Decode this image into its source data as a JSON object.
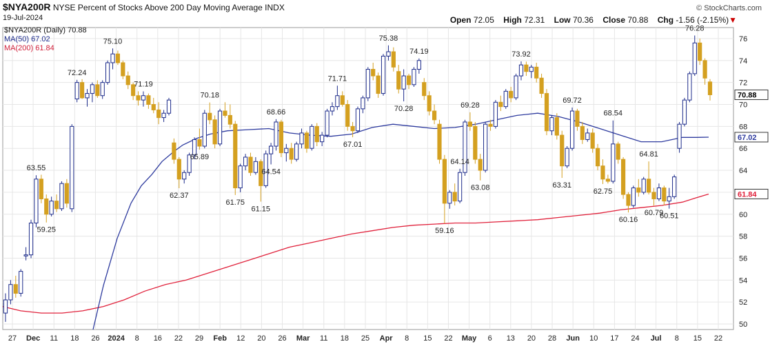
{
  "header": {
    "symbol": "$NYA200R",
    "description": "NYSE Percent of Stocks Above 200 Day Moving Average",
    "exchange": "INDX",
    "date": "19-Jul-2024",
    "brand": "© StockCharts.com",
    "open_label": "Open",
    "open": "72.05",
    "high_label": "High",
    "high": "72.31",
    "low_label": "Low",
    "low": "70.36",
    "close_label": "Close",
    "close": "70.88",
    "chg_label": "Chg",
    "chg": "-1.56 (-2.15%)"
  },
  "legend": {
    "main": "$NYA200R (Daily) 70.88",
    "ma50": "MA(50) 67.02",
    "ma200": "MA(200) 61.84"
  },
  "colors": {
    "up": "#1b2a8a",
    "down": "#d4a020",
    "ma50": "#2d3a9e",
    "ma200": "#e0203a",
    "grid": "#e6e6e6"
  },
  "chart_data": {
    "type": "candlestick",
    "ylim": [
      49.5,
      77
    ],
    "y_ticks": [
      50,
      52,
      54,
      56,
      58,
      60,
      62,
      64,
      66,
      68,
      70,
      72,
      74,
      76
    ],
    "x_ticks": [
      "27",
      "Dec",
      "11",
      "18",
      "26",
      "2024",
      "8",
      "16",
      "22",
      "29",
      "Feb",
      "12",
      "20",
      "26",
      "Mar",
      "11",
      "18",
      "25",
      "Apr",
      "8",
      "15",
      "22",
      "May",
      "6",
      "13",
      "20",
      "28",
      "Jun",
      "10",
      "17",
      "24",
      "Jul",
      "8",
      "15",
      "22"
    ],
    "value_tags": {
      "close": "70.88",
      "ma50": "67.02",
      "ma200": "61.84"
    },
    "annotations": [
      {
        "label": "63.55",
        "value": 63.55
      },
      {
        "label": "59.25",
        "value": 59.25
      },
      {
        "label": "72.24",
        "value": 72.24
      },
      {
        "label": "75.10",
        "value": 75.1
      },
      {
        "label": "71.19",
        "value": 71.19
      },
      {
        "label": "62.37",
        "value": 62.37
      },
      {
        "label": "65.89",
        "value": 65.89
      },
      {
        "label": "70.18",
        "value": 70.18
      },
      {
        "label": "61.75",
        "value": 61.75
      },
      {
        "label": "68.66",
        "value": 68.66
      },
      {
        "label": "61.15",
        "value": 61.15
      },
      {
        "label": "64.54",
        "value": 64.54
      },
      {
        "label": "71.71",
        "value": 71.71
      },
      {
        "label": "67.01",
        "value": 67.01
      },
      {
        "label": "75.38",
        "value": 75.38
      },
      {
        "label": "70.28",
        "value": 70.28
      },
      {
        "label": "74.19",
        "value": 74.19
      },
      {
        "label": "59.16",
        "value": 59.16
      },
      {
        "label": "69.28",
        "value": 69.28
      },
      {
        "label": "64.14",
        "value": 64.14
      },
      {
        "label": "63.08",
        "value": 63.08
      },
      {
        "label": "73.92",
        "value": 73.92
      },
      {
        "label": "63.31",
        "value": 63.31
      },
      {
        "label": "69.72",
        "value": 69.72
      },
      {
        "label": "68.54",
        "value": 68.54
      },
      {
        "label": "62.75",
        "value": 62.75
      },
      {
        "label": "60.16",
        "value": 60.16
      },
      {
        "label": "64.81",
        "value": 64.81
      },
      {
        "label": "60.79",
        "value": 60.79
      },
      {
        "label": "60.51",
        "value": 60.51
      },
      {
        "label": "76.28",
        "value": 76.28
      }
    ],
    "candles": [
      [
        51.0,
        52.8,
        50.2,
        52.2
      ],
      [
        52.2,
        54.0,
        51.8,
        53.6
      ],
      [
        53.6,
        54.4,
        52.4,
        52.8
      ],
      [
        52.8,
        55.0,
        52.5,
        54.8
      ],
      [
        56.2,
        57.0,
        55.8,
        56.3
      ],
      [
        56.3,
        59.5,
        56.0,
        59.2
      ],
      [
        59.2,
        63.55,
        58.8,
        63.2
      ],
      [
        63.2,
        63.6,
        61.0,
        61.4
      ],
      [
        61.4,
        61.8,
        59.25,
        60.0
      ],
      [
        60.0,
        61.6,
        59.8,
        61.2
      ],
      [
        61.2,
        61.8,
        60.2,
        60.5
      ],
      [
        60.5,
        63.0,
        60.3,
        62.8
      ],
      [
        62.8,
        63.2,
        60.6,
        61.0
      ],
      [
        60.5,
        68.2,
        60.2,
        68.0
      ],
      [
        70.5,
        72.24,
        70.2,
        72.0
      ],
      [
        72.0,
        72.3,
        70.5,
        70.6
      ],
      [
        70.6,
        71.4,
        69.8,
        71.0
      ],
      [
        71.0,
        72.0,
        70.2,
        71.8
      ],
      [
        71.8,
        72.2,
        70.6,
        70.8
      ],
      [
        70.8,
        72.2,
        70.5,
        72.0
      ],
      [
        72.0,
        74.0,
        71.8,
        73.8
      ],
      [
        73.8,
        75.1,
        73.2,
        74.6
      ],
      [
        74.6,
        74.9,
        73.6,
        73.8
      ],
      [
        73.8,
        74.0,
        72.3,
        72.6
      ],
      [
        72.6,
        73.0,
        71.4,
        71.8
      ],
      [
        71.8,
        72.0,
        70.4,
        70.8
      ],
      [
        70.8,
        71.2,
        69.9,
        70.4
      ],
      [
        70.4,
        71.19,
        69.8,
        70.8
      ],
      [
        70.8,
        71.0,
        69.6,
        70.0
      ],
      [
        70.0,
        70.6,
        69.2,
        69.5
      ],
      [
        69.5,
        70.2,
        68.2,
        68.8
      ],
      [
        68.8,
        69.5,
        68.4,
        69.2
      ],
      [
        69.2,
        70.6,
        69.0,
        70.4
      ],
      [
        66.5,
        66.9,
        64.6,
        65.0
      ],
      [
        65.0,
        65.2,
        62.37,
        63.2
      ],
      [
        63.2,
        64.0,
        62.8,
        63.8
      ],
      [
        63.8,
        65.6,
        63.5,
        65.4
      ],
      [
        65.4,
        67.0,
        65.0,
        66.8
      ],
      [
        66.8,
        67.8,
        65.89,
        66.2
      ],
      [
        66.2,
        69.5,
        66.0,
        69.2
      ],
      [
        69.2,
        70.18,
        68.2,
        68.6
      ],
      [
        68.6,
        69.0,
        66.0,
        66.4
      ],
      [
        66.4,
        69.6,
        66.2,
        69.4
      ],
      [
        69.4,
        70.2,
        68.8,
        69.0
      ],
      [
        69.0,
        70.0,
        67.8,
        68.2
      ],
      [
        68.2,
        68.5,
        61.75,
        62.4
      ],
      [
        62.4,
        64.6,
        62.0,
        64.4
      ],
      [
        64.4,
        65.5,
        64.0,
        65.2
      ],
      [
        65.2,
        65.6,
        63.5,
        63.8
      ],
      [
        63.8,
        65.2,
        63.6,
        64.8
      ],
      [
        64.8,
        65.0,
        61.15,
        62.6
      ],
      [
        62.6,
        65.8,
        62.4,
        65.5
      ],
      [
        65.5,
        66.5,
        64.54,
        66.2
      ],
      [
        66.2,
        68.66,
        65.8,
        68.4
      ],
      [
        68.4,
        68.6,
        65.2,
        65.6
      ],
      [
        65.6,
        66.4,
        64.8,
        66.0
      ],
      [
        66.0,
        66.5,
        64.6,
        65.0
      ],
      [
        65.0,
        66.6,
        64.8,
        66.4
      ],
      [
        66.4,
        67.8,
        66.0,
        67.4
      ],
      [
        67.4,
        67.6,
        65.6,
        66.0
      ],
      [
        66.0,
        68.2,
        65.8,
        68.0
      ],
      [
        68.0,
        68.3,
        66.2,
        66.6
      ],
      [
        66.6,
        67.5,
        66.2,
        67.2
      ],
      [
        67.2,
        69.6,
        67.0,
        69.4
      ],
      [
        69.4,
        70.2,
        69.0,
        69.8
      ],
      [
        69.8,
        71.71,
        69.5,
        70.8
      ],
      [
        70.8,
        71.2,
        69.8,
        70.0
      ],
      [
        70.0,
        70.4,
        67.6,
        68.0
      ],
      [
        68.0,
        68.4,
        67.01,
        67.6
      ],
      [
        67.6,
        69.8,
        67.4,
        69.6
      ],
      [
        69.6,
        70.8,
        69.2,
        70.6
      ],
      [
        70.6,
        73.4,
        70.3,
        73.2
      ],
      [
        73.2,
        73.8,
        72.2,
        72.6
      ],
      [
        72.6,
        72.9,
        70.6,
        71.0
      ],
      [
        71.0,
        74.6,
        70.8,
        74.4
      ],
      [
        74.4,
        75.38,
        74.0,
        74.8
      ],
      [
        74.8,
        75.2,
        73.0,
        73.4
      ],
      [
        73.0,
        73.6,
        71.0,
        71.4
      ],
      [
        71.4,
        73.2,
        70.28,
        72.6
      ],
      [
        72.6,
        72.8,
        71.4,
        71.8
      ],
      [
        71.8,
        73.4,
        71.6,
        73.2
      ],
      [
        73.2,
        74.19,
        72.8,
        74.0
      ],
      [
        72.0,
        72.4,
        70.4,
        70.8
      ],
      [
        70.8,
        71.2,
        69.0,
        69.4
      ],
      [
        69.4,
        70.0,
        68.2,
        68.6
      ],
      [
        68.2,
        68.6,
        64.6,
        65.0
      ],
      [
        65.0,
        65.4,
        59.16,
        61.0
      ],
      [
        61.0,
        62.2,
        60.5,
        62.0
      ],
      [
        62.0,
        62.8,
        60.8,
        61.2
      ],
      [
        61.2,
        64.14,
        61.0,
        63.8
      ],
      [
        63.8,
        68.6,
        63.5,
        68.4
      ],
      [
        68.4,
        69.28,
        67.6,
        68.0
      ],
      [
        68.0,
        68.4,
        64.6,
        65.0
      ],
      [
        65.0,
        65.5,
        63.08,
        64.0
      ],
      [
        64.0,
        68.4,
        63.8,
        68.2
      ],
      [
        68.2,
        68.6,
        67.6,
        68.0
      ],
      [
        68.0,
        70.4,
        67.8,
        70.2
      ],
      [
        70.2,
        70.8,
        69.4,
        69.8
      ],
      [
        69.8,
        71.4,
        69.6,
        71.2
      ],
      [
        71.2,
        71.6,
        70.2,
        70.6
      ],
      [
        70.6,
        72.8,
        70.4,
        72.6
      ],
      [
        72.6,
        73.92,
        72.2,
        73.6
      ],
      [
        73.6,
        73.9,
        72.6,
        73.0
      ],
      [
        73.0,
        73.6,
        72.4,
        73.4
      ],
      [
        73.4,
        73.8,
        72.0,
        72.4
      ],
      [
        72.4,
        72.8,
        70.6,
        71.0
      ],
      [
        71.0,
        71.4,
        67.2,
        67.6
      ],
      [
        67.6,
        69.0,
        67.2,
        68.8
      ],
      [
        68.8,
        69.2,
        66.8,
        67.2
      ],
      [
        67.2,
        67.6,
        63.31,
        64.4
      ],
      [
        64.4,
        66.2,
        64.2,
        66.0
      ],
      [
        66.0,
        69.72,
        65.8,
        69.4
      ],
      [
        69.4,
        69.6,
        67.6,
        68.0
      ],
      [
        68.0,
        68.4,
        66.4,
        66.8
      ],
      [
        66.8,
        67.8,
        66.6,
        67.4
      ],
      [
        67.4,
        67.8,
        65.6,
        66.0
      ],
      [
        66.0,
        66.4,
        64.0,
        64.4
      ],
      [
        64.4,
        65.0,
        62.75,
        63.2
      ],
      [
        63.2,
        63.6,
        62.8,
        63.0
      ],
      [
        63.0,
        68.54,
        62.8,
        66.4
      ],
      [
        66.4,
        66.6,
        64.6,
        65.0
      ],
      [
        65.0,
        65.2,
        61.4,
        61.8
      ],
      [
        61.8,
        62.0,
        60.16,
        60.8
      ],
      [
        60.8,
        62.6,
        60.6,
        62.4
      ],
      [
        62.4,
        63.2,
        61.6,
        62.0
      ],
      [
        62.0,
        63.4,
        61.8,
        63.2
      ],
      [
        63.2,
        64.81,
        61.8,
        62.0
      ],
      [
        62.0,
        62.4,
        60.79,
        61.4
      ],
      [
        61.4,
        62.8,
        61.2,
        62.4
      ],
      [
        62.4,
        62.6,
        60.8,
        61.2
      ],
      [
        61.2,
        62.4,
        60.51,
        61.6
      ],
      [
        61.6,
        63.6,
        61.4,
        63.4
      ],
      [
        66.0,
        68.4,
        65.6,
        68.2
      ],
      [
        68.2,
        70.6,
        68.0,
        70.4
      ],
      [
        70.4,
        73.0,
        70.2,
        72.8
      ],
      [
        72.8,
        76.28,
        72.6,
        75.6
      ],
      [
        75.6,
        76.0,
        73.6,
        74.0
      ],
      [
        74.0,
        74.2,
        71.8,
        72.4
      ],
      [
        72.05,
        72.31,
        70.36,
        70.88
      ]
    ],
    "ma50": [
      [
        135,
        49.5
      ],
      [
        150,
        53.5
      ],
      [
        170,
        57.8
      ],
      [
        190,
        61.0
      ],
      [
        205,
        62.6
      ],
      [
        220,
        63.6
      ],
      [
        235,
        64.8
      ],
      [
        250,
        65.6
      ],
      [
        265,
        66.3
      ],
      [
        285,
        66.9
      ],
      [
        305,
        67.3
      ],
      [
        330,
        67.6
      ],
      [
        360,
        67.7
      ],
      [
        390,
        67.8
      ],
      [
        420,
        67.4
      ],
      [
        450,
        67.2
      ],
      [
        480,
        67.1
      ],
      [
        510,
        67.3
      ],
      [
        540,
        67.9
      ],
      [
        570,
        68.2
      ],
      [
        600,
        68.0
      ],
      [
        630,
        67.8
      ],
      [
        660,
        67.9
      ],
      [
        690,
        68.2
      ],
      [
        720,
        68.6
      ],
      [
        750,
        69.0
      ],
      [
        780,
        69.2
      ],
      [
        810,
        68.9
      ],
      [
        840,
        68.4
      ],
      [
        870,
        67.8
      ],
      [
        900,
        67.2
      ],
      [
        930,
        66.6
      ],
      [
        960,
        66.6
      ],
      [
        990,
        67.0
      ],
      [
        1010,
        67.0
      ],
      [
        1028,
        67.02
      ]
    ],
    "ma200": [
      [
        4,
        51.6
      ],
      [
        30,
        51.2
      ],
      [
        60,
        51.0
      ],
      [
        90,
        51.0
      ],
      [
        120,
        51.2
      ],
      [
        150,
        51.6
      ],
      [
        180,
        52.2
      ],
      [
        210,
        53.0
      ],
      [
        240,
        53.6
      ],
      [
        270,
        54.0
      ],
      [
        300,
        54.6
      ],
      [
        330,
        55.2
      ],
      [
        360,
        55.8
      ],
      [
        390,
        56.4
      ],
      [
        420,
        57.0
      ],
      [
        450,
        57.4
      ],
      [
        480,
        57.8
      ],
      [
        510,
        58.2
      ],
      [
        540,
        58.5
      ],
      [
        570,
        58.8
      ],
      [
        600,
        59.0
      ],
      [
        630,
        59.1
      ],
      [
        660,
        59.2
      ],
      [
        690,
        59.2
      ],
      [
        720,
        59.3
      ],
      [
        750,
        59.4
      ],
      [
        780,
        59.5
      ],
      [
        810,
        59.7
      ],
      [
        840,
        59.9
      ],
      [
        870,
        60.1
      ],
      [
        900,
        60.4
      ],
      [
        930,
        60.6
      ],
      [
        960,
        60.8
      ],
      [
        990,
        61.1
      ],
      [
        1010,
        61.5
      ],
      [
        1028,
        61.84
      ]
    ]
  }
}
